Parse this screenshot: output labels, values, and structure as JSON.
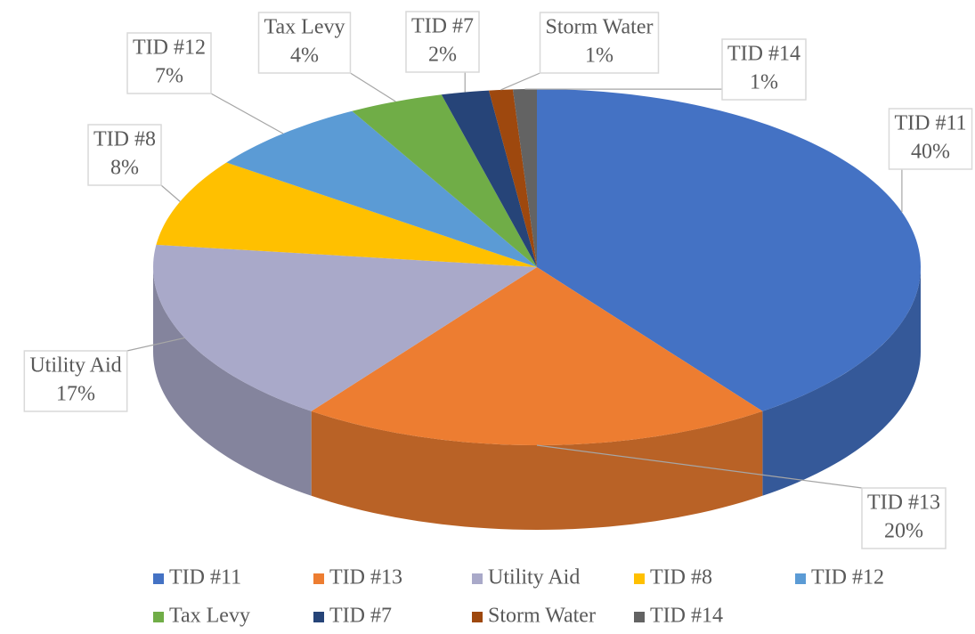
{
  "chart_data": {
    "type": "pie",
    "categories": [
      "TID #11",
      "TID #13",
      "Utility Aid",
      "TID #8",
      "TID #12",
      "Tax Levy",
      "TID #7",
      "Storm Water",
      "TID #14"
    ],
    "values": [
      40,
      20,
      17,
      8,
      7,
      4,
      2,
      1,
      1
    ],
    "value_labels": [
      "40%",
      "20%",
      "17%",
      "8%",
      "7%",
      "4%",
      "2%",
      "1%",
      "1%"
    ],
    "colors": [
      "#4472c4",
      "#ed7d31",
      "#a9a9c9",
      "#ffc000",
      "#5b9bd5",
      "#70ad47",
      "#264478",
      "#9e480e",
      "#636363"
    ],
    "legend": "bottom"
  }
}
